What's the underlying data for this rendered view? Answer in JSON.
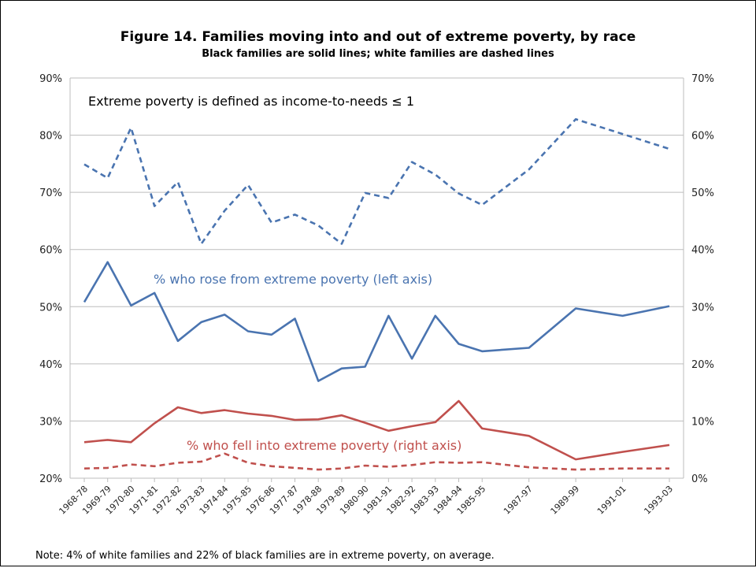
{
  "chart_data": {
    "type": "line",
    "title": "Figure 14. Families moving into and out of extreme poverty, by race",
    "subtitle": "Black families are solid lines; white families are dashed lines",
    "definition": "Extreme poverty is defined as income-to-needs ≤ 1",
    "label_rose": "% who rose from extreme poverty (left axis)",
    "label_fell": "% who fell into extreme poverty (right axis)",
    "note": "Note: 4% of white families and 22% of black families are in extreme poverty, on average.",
    "grid": true,
    "left_axis": {
      "min": 20,
      "max": 90,
      "step": 10,
      "ticks": [
        "20%",
        "30%",
        "40%",
        "50%",
        "60%",
        "70%",
        "80%",
        "90%"
      ]
    },
    "right_axis": {
      "min": 0,
      "max": 70,
      "step": 10,
      "ticks": [
        "0%",
        "10%",
        "20%",
        "30%",
        "40%",
        "50%",
        "60%",
        "70%"
      ]
    },
    "categories": [
      "1968-78",
      "1969-79",
      "1970-80",
      "1971-81",
      "1972-82",
      "1973-83",
      "1974-84",
      "1975-85",
      "1976-86",
      "1977-87",
      "1978-88",
      "1979-89",
      "1980-90",
      "1981-91",
      "1982-92",
      "1983-93",
      "1984-94",
      "1985-95",
      "1987-97",
      "1989-99",
      "1991-01",
      "1993-03"
    ],
    "x_positions": [
      1968,
      1969,
      1970,
      1971,
      1972,
      1973,
      1974,
      1975,
      1976,
      1977,
      1978,
      1979,
      1980,
      1981,
      1982,
      1983,
      1984,
      1985,
      1987,
      1989,
      1991,
      1993
    ],
    "series": [
      {
        "key": "white_rose",
        "axis": "left",
        "style": "dashed",
        "color": "#4a74b0",
        "values": [
          74.9,
          72.5,
          81.3,
          67.6,
          71.8,
          61.0,
          66.8,
          71.3,
          64.7,
          66.1,
          64.2,
          61.0,
          69.9,
          69.0,
          75.3,
          73.1,
          69.8,
          67.8,
          74.0,
          82.8,
          80.2,
          77.6
        ]
      },
      {
        "key": "black_rose",
        "axis": "left",
        "style": "solid",
        "color": "#4a74b0",
        "values": [
          50.8,
          57.8,
          50.2,
          52.4,
          44.0,
          47.3,
          48.6,
          45.7,
          45.1,
          47.9,
          37.0,
          39.2,
          39.5,
          48.4,
          40.9,
          48.4,
          43.5,
          42.2,
          42.8,
          49.7,
          48.4,
          50.1
        ]
      },
      {
        "key": "black_fell",
        "axis": "right",
        "style": "solid",
        "color": "#c0504d",
        "values": [
          6.3,
          6.7,
          6.3,
          9.6,
          12.4,
          11.4,
          11.9,
          11.3,
          10.9,
          10.2,
          10.3,
          11.0,
          9.7,
          8.3,
          9.1,
          9.8,
          13.5,
          8.7,
          7.4,
          3.3,
          4.6,
          5.8
        ]
      },
      {
        "key": "white_fell",
        "axis": "right",
        "style": "dashed",
        "color": "#c0504d",
        "values": [
          1.7,
          1.8,
          2.4,
          2.1,
          2.7,
          2.9,
          4.3,
          2.7,
          2.1,
          1.8,
          1.5,
          1.7,
          2.2,
          2.0,
          2.3,
          2.8,
          2.7,
          2.8,
          1.9,
          1.5,
          1.7,
          1.7
        ]
      }
    ]
  }
}
